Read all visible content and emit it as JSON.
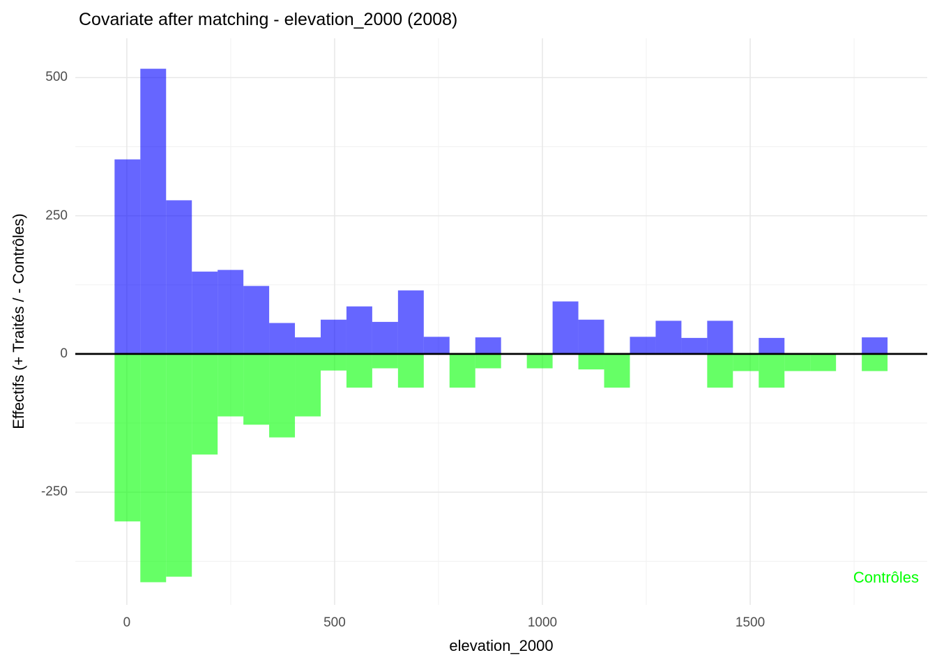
{
  "chart_data": {
    "type": "bar",
    "subtype": "back-to-back-histogram",
    "title": "Covariate after matching - elevation_2000 (2008)",
    "xlabel": "elevation_2000",
    "ylabel": "Effectifs (+ Traités / - Contrôles)",
    "annotation": {
      "text": "Contrôles",
      "color": "#00ff00",
      "x": 1800,
      "y": -405
    },
    "bins": {
      "start": -29.5,
      "width": 62
    },
    "series": [
      {
        "name": "Traités",
        "sign": "positive",
        "color": "#0000ff",
        "fill_opacity": 0.6,
        "values": [
          352,
          516,
          278,
          149,
          152,
          123,
          56,
          30,
          62,
          86,
          58,
          115,
          31,
          0,
          30,
          0,
          0,
          95,
          62,
          0,
          31,
          60,
          29,
          60,
          0,
          29,
          0,
          0,
          0,
          30
        ]
      },
      {
        "name": "Contrôles",
        "sign": "negative",
        "color": "#00ff00",
        "fill_opacity": 0.6,
        "values": [
          -303,
          -413,
          -403,
          -182,
          -113,
          -128,
          -151,
          -113,
          -30,
          -61,
          -26,
          -61,
          0,
          -61,
          -26,
          0,
          -26,
          0,
          -28,
          -61,
          0,
          0,
          0,
          -61,
          -31,
          -61,
          -31,
          -31,
          0,
          -31
        ]
      }
    ],
    "x_ticks": [
      0,
      500,
      1000,
      1500
    ],
    "x_minor_ticks": [
      250,
      750,
      1250,
      1750
    ],
    "y_ticks": [
      -250,
      0,
      250,
      500
    ],
    "y_minor_ticks": [
      -375,
      -125,
      125,
      375
    ],
    "xlim": [
      -124,
      1926
    ],
    "ylim": [
      -454,
      571
    ],
    "grid": true,
    "legend_position": "none",
    "zero_line_color": "#000000",
    "gridline_color": "#e7e7e7",
    "minor_gridline_color": "#f1f1f1",
    "tick_label_color": "#4d4d4d"
  }
}
